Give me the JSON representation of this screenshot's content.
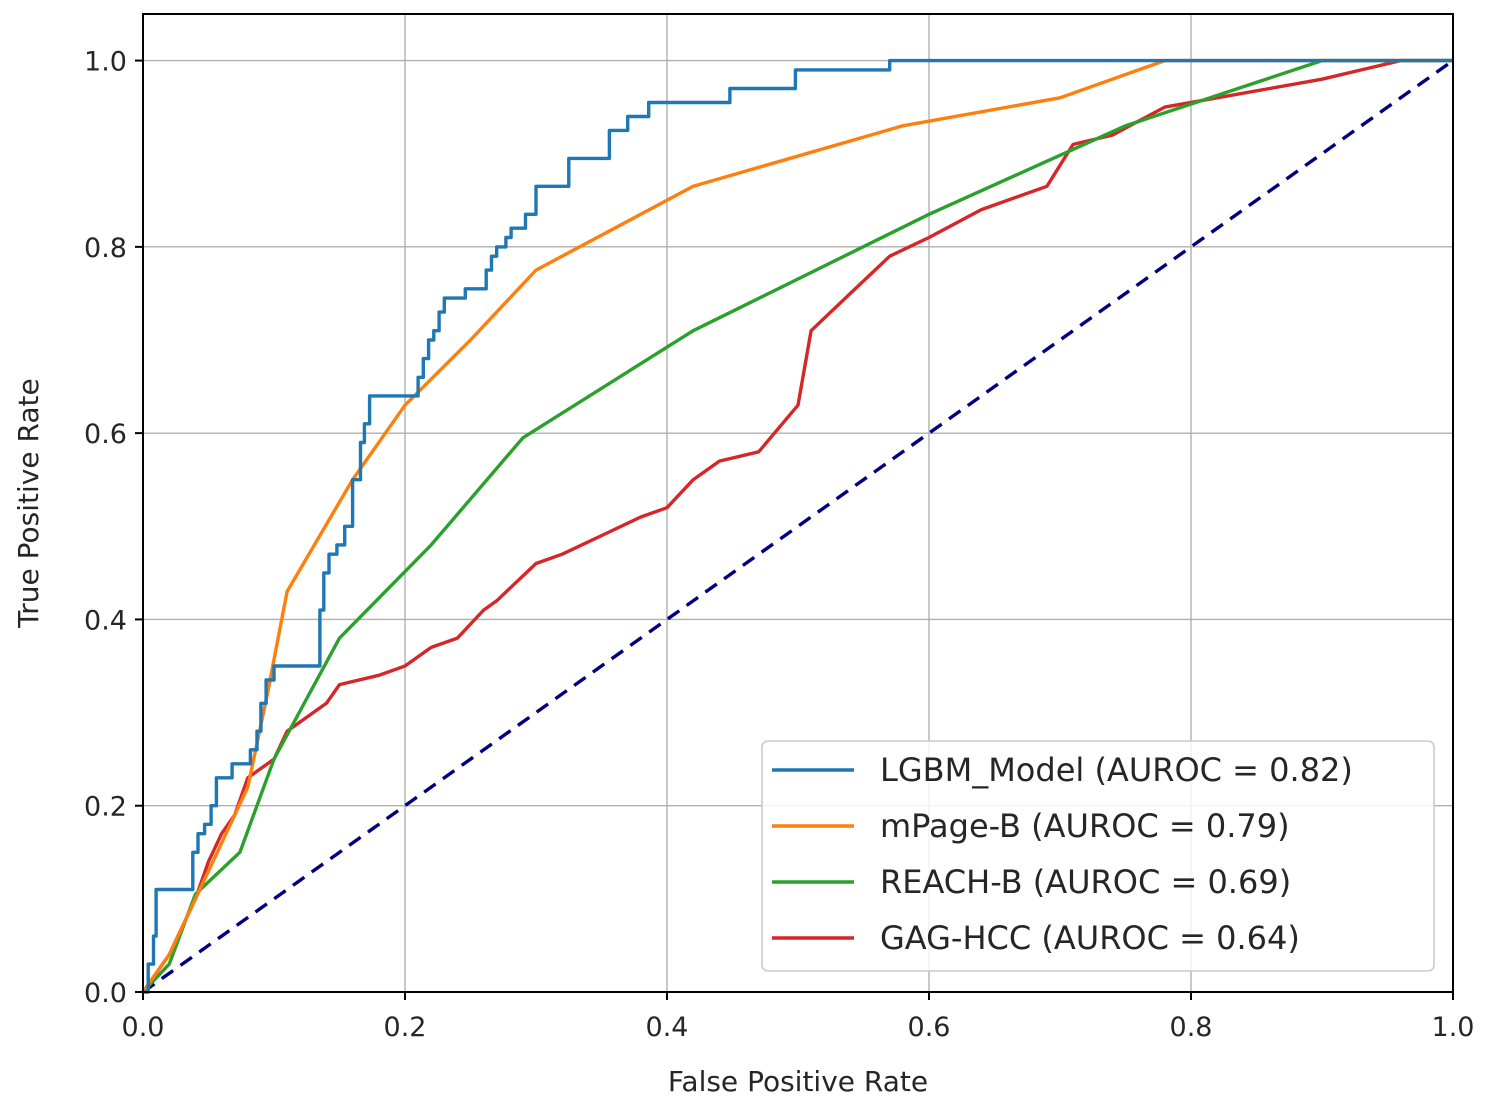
{
  "chart_data": {
    "type": "line",
    "title": "",
    "xlabel": "False Positive Rate",
    "ylabel": "True Positive Rate",
    "xlim": [
      0.0,
      1.0
    ],
    "ylim": [
      0.0,
      1.05
    ],
    "xticks": [
      "0.0",
      "0.2",
      "0.4",
      "0.6",
      "0.8",
      "1.0"
    ],
    "yticks": [
      "0.0",
      "0.2",
      "0.4",
      "0.6",
      "0.8",
      "1.0"
    ],
    "grid": true,
    "legend_position": "lower-right",
    "reference_line": {
      "x": [
        0,
        1
      ],
      "y": [
        0,
        1
      ],
      "color": "#000080",
      "style": "dashed"
    },
    "series": [
      {
        "name": "LGBM_Model (AUROC = 0.82)",
        "color": "#1f77b4",
        "step": true,
        "x": [
          0.0,
          0.004,
          0.004,
          0.008,
          0.008,
          0.01,
          0.01,
          0.038,
          0.038,
          0.042,
          0.042,
          0.047,
          0.047,
          0.052,
          0.052,
          0.056,
          0.056,
          0.062,
          0.062,
          0.068,
          0.068,
          0.074,
          0.074,
          0.082,
          0.082,
          0.087,
          0.087,
          0.09,
          0.09,
          0.094,
          0.094,
          0.1,
          0.1,
          0.108,
          0.108,
          0.135,
          0.135,
          0.138,
          0.138,
          0.142,
          0.142,
          0.148,
          0.148,
          0.154,
          0.154,
          0.16,
          0.16,
          0.166,
          0.166,
          0.169,
          0.169,
          0.173,
          0.173,
          0.21,
          0.21,
          0.214,
          0.214,
          0.218,
          0.218,
          0.222,
          0.222,
          0.226,
          0.226,
          0.23,
          0.23,
          0.246,
          0.246,
          0.262,
          0.262,
          0.266,
          0.266,
          0.27,
          0.27,
          0.277,
          0.277,
          0.281,
          0.281,
          0.292,
          0.292,
          0.3,
          0.3,
          0.325,
          0.325,
          0.356,
          0.356,
          0.37,
          0.37,
          0.378,
          0.378,
          0.386,
          0.386,
          0.448,
          0.448,
          0.498,
          0.498,
          0.57,
          0.57,
          0.58,
          0.58,
          1.0
        ],
        "y": [
          0.0,
          0.0,
          0.03,
          0.03,
          0.06,
          0.06,
          0.11,
          0.11,
          0.15,
          0.15,
          0.17,
          0.17,
          0.18,
          0.18,
          0.2,
          0.2,
          0.23,
          0.23,
          0.23,
          0.23,
          0.245,
          0.245,
          0.245,
          0.245,
          0.26,
          0.26,
          0.28,
          0.28,
          0.31,
          0.31,
          0.335,
          0.335,
          0.35,
          0.35,
          0.35,
          0.35,
          0.41,
          0.41,
          0.45,
          0.45,
          0.47,
          0.47,
          0.48,
          0.48,
          0.5,
          0.5,
          0.55,
          0.55,
          0.59,
          0.59,
          0.61,
          0.61,
          0.64,
          0.64,
          0.66,
          0.66,
          0.68,
          0.68,
          0.7,
          0.7,
          0.71,
          0.71,
          0.73,
          0.73,
          0.745,
          0.745,
          0.755,
          0.755,
          0.775,
          0.775,
          0.79,
          0.79,
          0.8,
          0.8,
          0.81,
          0.81,
          0.82,
          0.82,
          0.835,
          0.835,
          0.865,
          0.865,
          0.895,
          0.895,
          0.925,
          0.925,
          0.94,
          0.94,
          0.94,
          0.94,
          0.955,
          0.955,
          0.97,
          0.97,
          0.99,
          0.99,
          1.0,
          1.0,
          1.0,
          1.0
        ]
      },
      {
        "name": "mPage-B (AUROC = 0.79)",
        "color": "#ff7f0e",
        "step": false,
        "x": [
          0.0,
          0.02,
          0.04,
          0.06,
          0.08,
          0.095,
          0.11,
          0.16,
          0.2,
          0.25,
          0.3,
          0.42,
          0.58,
          0.7,
          0.78,
          1.0
        ],
        "y": [
          0.0,
          0.04,
          0.1,
          0.16,
          0.22,
          0.32,
          0.43,
          0.55,
          0.63,
          0.7,
          0.775,
          0.865,
          0.93,
          0.96,
          1.0,
          1.0
        ]
      },
      {
        "name": "REACH-B (AUROC = 0.69)",
        "color": "#2ca02c",
        "step": false,
        "x": [
          0.0,
          0.02,
          0.04,
          0.074,
          0.1,
          0.15,
          0.22,
          0.29,
          0.42,
          0.6,
          0.75,
          0.9,
          1.0
        ],
        "y": [
          0.0,
          0.03,
          0.105,
          0.15,
          0.25,
          0.38,
          0.48,
          0.595,
          0.71,
          0.835,
          0.93,
          1.0,
          1.0
        ]
      },
      {
        "name": "GAG-HCC (AUROC = 0.64)",
        "color": "#d62728",
        "step": false,
        "x": [
          0.0,
          0.01,
          0.02,
          0.04,
          0.05,
          0.06,
          0.07,
          0.08,
          0.1,
          0.11,
          0.12,
          0.14,
          0.15,
          0.18,
          0.2,
          0.22,
          0.24,
          0.26,
          0.27,
          0.3,
          0.32,
          0.35,
          0.38,
          0.4,
          0.42,
          0.44,
          0.47,
          0.5,
          0.51,
          0.54,
          0.57,
          0.6,
          0.64,
          0.67,
          0.69,
          0.71,
          0.74,
          0.78,
          0.82,
          0.86,
          0.9,
          0.93,
          0.96,
          1.0
        ],
        "y": [
          0.0,
          0.02,
          0.04,
          0.1,
          0.14,
          0.17,
          0.19,
          0.23,
          0.25,
          0.28,
          0.29,
          0.31,
          0.33,
          0.34,
          0.35,
          0.37,
          0.38,
          0.41,
          0.42,
          0.46,
          0.47,
          0.49,
          0.51,
          0.52,
          0.55,
          0.57,
          0.58,
          0.63,
          0.71,
          0.75,
          0.79,
          0.81,
          0.84,
          0.855,
          0.865,
          0.91,
          0.92,
          0.95,
          0.96,
          0.97,
          0.98,
          0.99,
          1.0,
          1.0
        ]
      }
    ]
  }
}
